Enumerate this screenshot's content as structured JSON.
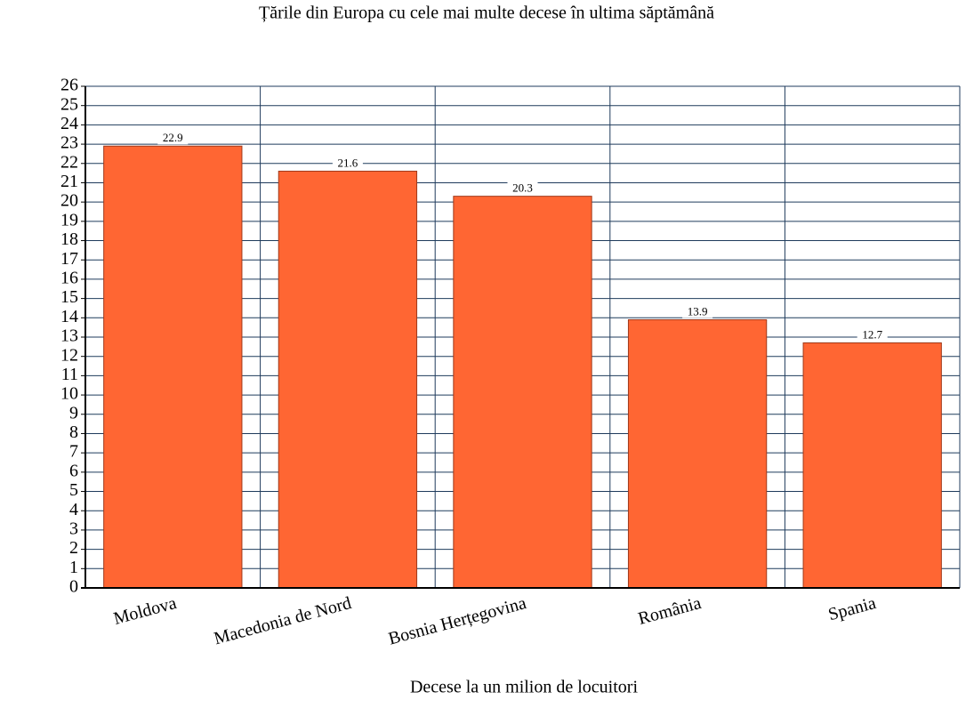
{
  "chart_data": {
    "type": "bar",
    "title": "Țările din Europa cu cele mai multe decese în ultima săptămână",
    "x_label": "Decese la un milion de locuitori",
    "categories": [
      "Moldova",
      "Macedonia de Nord",
      "Bosnia Herțegovina",
      "România",
      "Spania"
    ],
    "values": [
      22.9,
      21.6,
      20.3,
      13.9,
      12.7
    ],
    "color": "#ff6633",
    "ylim": [
      0,
      26
    ],
    "yticks": [
      0,
      1,
      2,
      3,
      4,
      5,
      6,
      7,
      8,
      9,
      10,
      11,
      12,
      13,
      14,
      15,
      16,
      17,
      18,
      19,
      20,
      21,
      22,
      23,
      24,
      25,
      26
    ],
    "grid": true
  }
}
